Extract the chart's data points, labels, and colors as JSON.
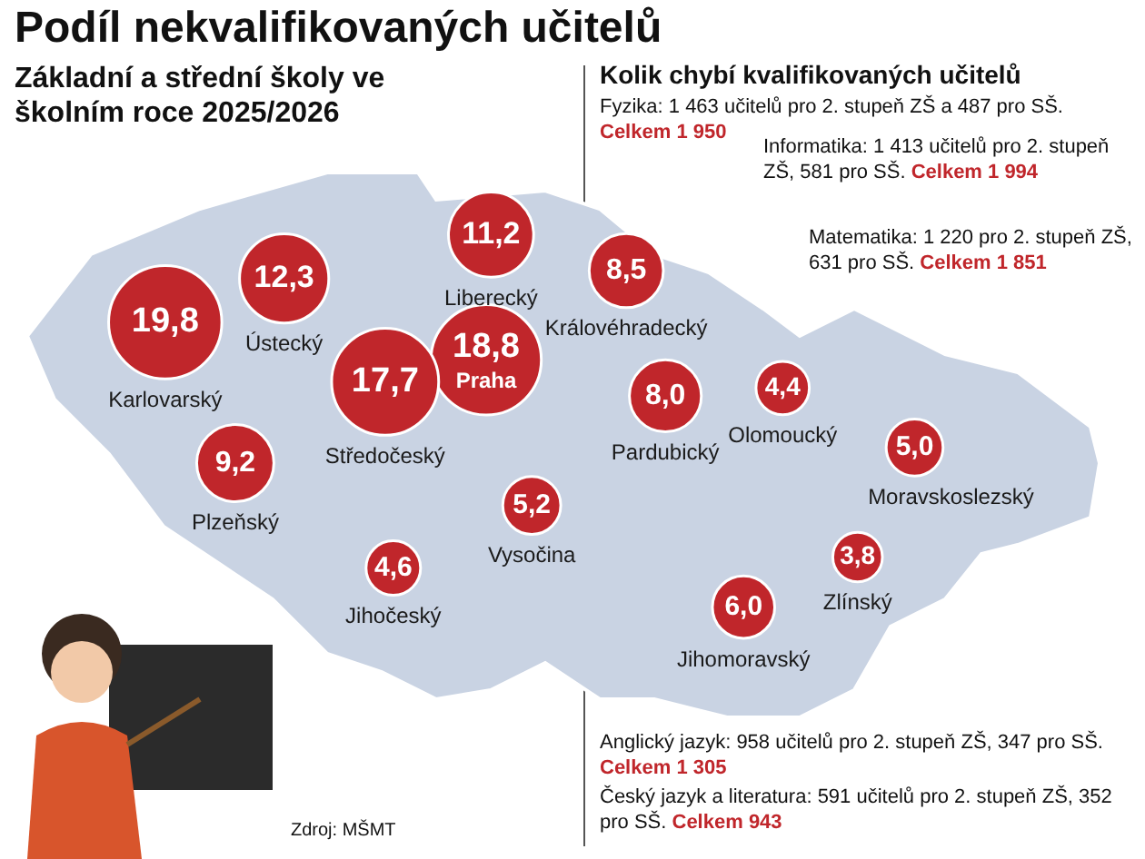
{
  "chart_data": {
    "type": "other",
    "title": "Podíl nekvalifikovaných učitelů",
    "subtitle": "Základní a střední školy ve školním roce 2025/2026",
    "color": "#c0262b",
    "categories": [
      "Karlovarský",
      "Ústecký",
      "Liberecký",
      "Královéhradecký",
      "Praha",
      "Středočeský",
      "Plzeňský",
      "Pardubický",
      "Olomoucký",
      "Moravskoslezský",
      "Vysočina",
      "Zlínský",
      "Jihomoravský",
      "Jihočeský"
    ],
    "values": [
      19.8,
      12.3,
      11.2,
      8.5,
      18.8,
      17.7,
      9.2,
      8.0,
      4.4,
      5.0,
      5.2,
      3.8,
      6.0,
      4.6
    ],
    "value_labels": [
      "19,8",
      "12,3",
      "11,2",
      "8,5",
      "18,8",
      "17,7",
      "9,2",
      "8,0",
      "4,4",
      "5,0",
      "5,2",
      "3,8",
      "6,0",
      "4,6"
    ],
    "annotations": [
      "Kolik chybí kvalifikovaných učitelů",
      "Fyzika: 1 463 učitelů pro 2. stupeň ZŠ a 487 pro SŠ.",
      "Celkem 1 950",
      "Informatika: 1 413 učitelů pro 2. stupeň ZŠ, 581 pro SŠ.",
      "Celkem 1 994",
      "Matematika: 1 220 pro 2. stupeň ZŠ, 631 pro SŠ.",
      "Celkem 1 851",
      "Anglický jazyk: 958 učitelů pro 2. stupeň ZŠ, 347 pro SŠ.",
      "Celkem 1 305",
      "Český jazyk a literatura: 591 učitelů pro 2. stupeň ZŠ, 352 pro SŠ.",
      "Celkem 943",
      "Zdroj: MŠMT"
    ]
  }
}
